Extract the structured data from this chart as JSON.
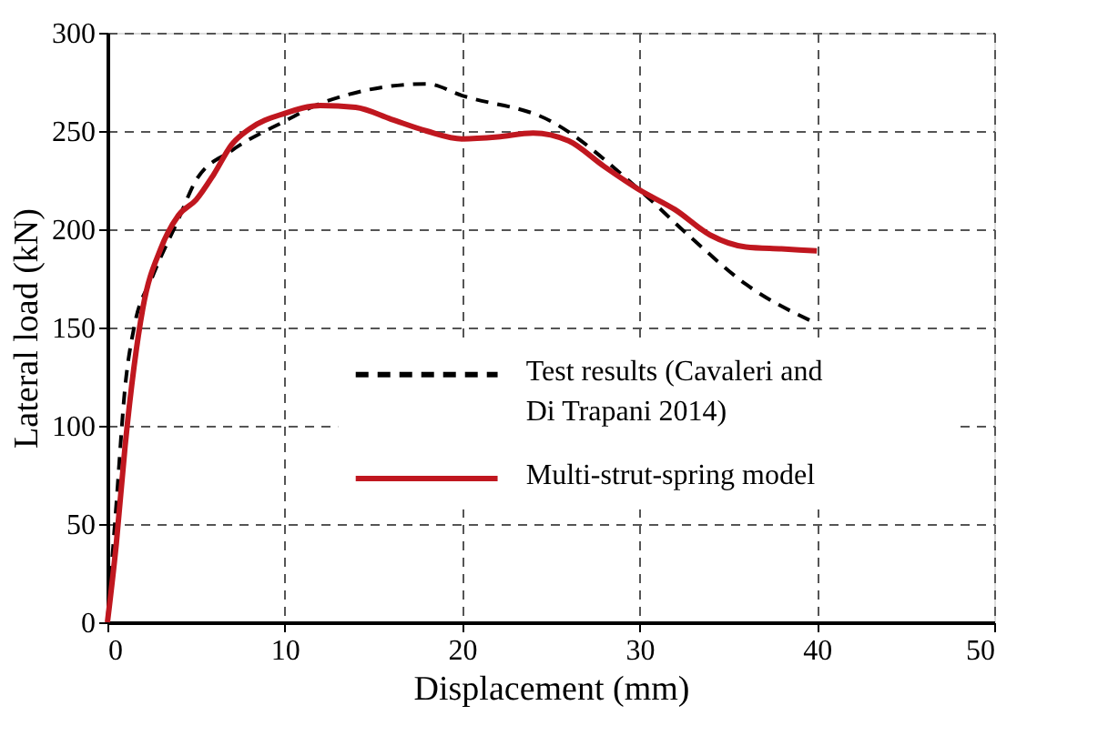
{
  "chart_data": {
    "type": "line",
    "xlabel": "Displacement (mm)",
    "ylabel": "Lateral load (kN)",
    "xlim": [
      0,
      50
    ],
    "xticks": [
      0,
      10,
      20,
      30,
      40,
      50
    ],
    "ylim": [
      0,
      300
    ],
    "yticks": [
      0,
      50,
      100,
      150,
      200,
      250,
      300
    ],
    "grid": true,
    "legend": "bottom right",
    "series": [
      {
        "name": "Test results (Cavaleri and Di Trapani 2014)",
        "color": "#000000",
        "line_style": "dashed",
        "x": [
          0,
          0.5,
          1,
          1.5,
          2.5,
          4,
          5,
          7,
          10,
          12,
          18,
          20,
          25,
          30,
          33,
          36,
          40
        ],
        "values": [
          0,
          60,
          120,
          150,
          175,
          205,
          225,
          240,
          255,
          264,
          274,
          268,
          255,
          220,
          195,
          172,
          152
        ]
      },
      {
        "name": "Multi-strut-spring model",
        "color": "#c0171f",
        "line_style": "solid",
        "x": [
          0,
          0.5,
          1,
          1.5,
          2,
          3,
          4,
          5,
          6,
          7,
          8,
          10,
          12,
          14,
          16,
          18,
          20,
          22,
          24,
          26,
          28,
          30,
          32,
          34,
          36,
          38,
          40
        ],
        "values": [
          0,
          40,
          90,
          130,
          160,
          190,
          207,
          215,
          228,
          243,
          251,
          259,
          263,
          262,
          256,
          250,
          246,
          247,
          249,
          245,
          232,
          220,
          210,
          197,
          191,
          190,
          189
        ]
      }
    ]
  }
}
